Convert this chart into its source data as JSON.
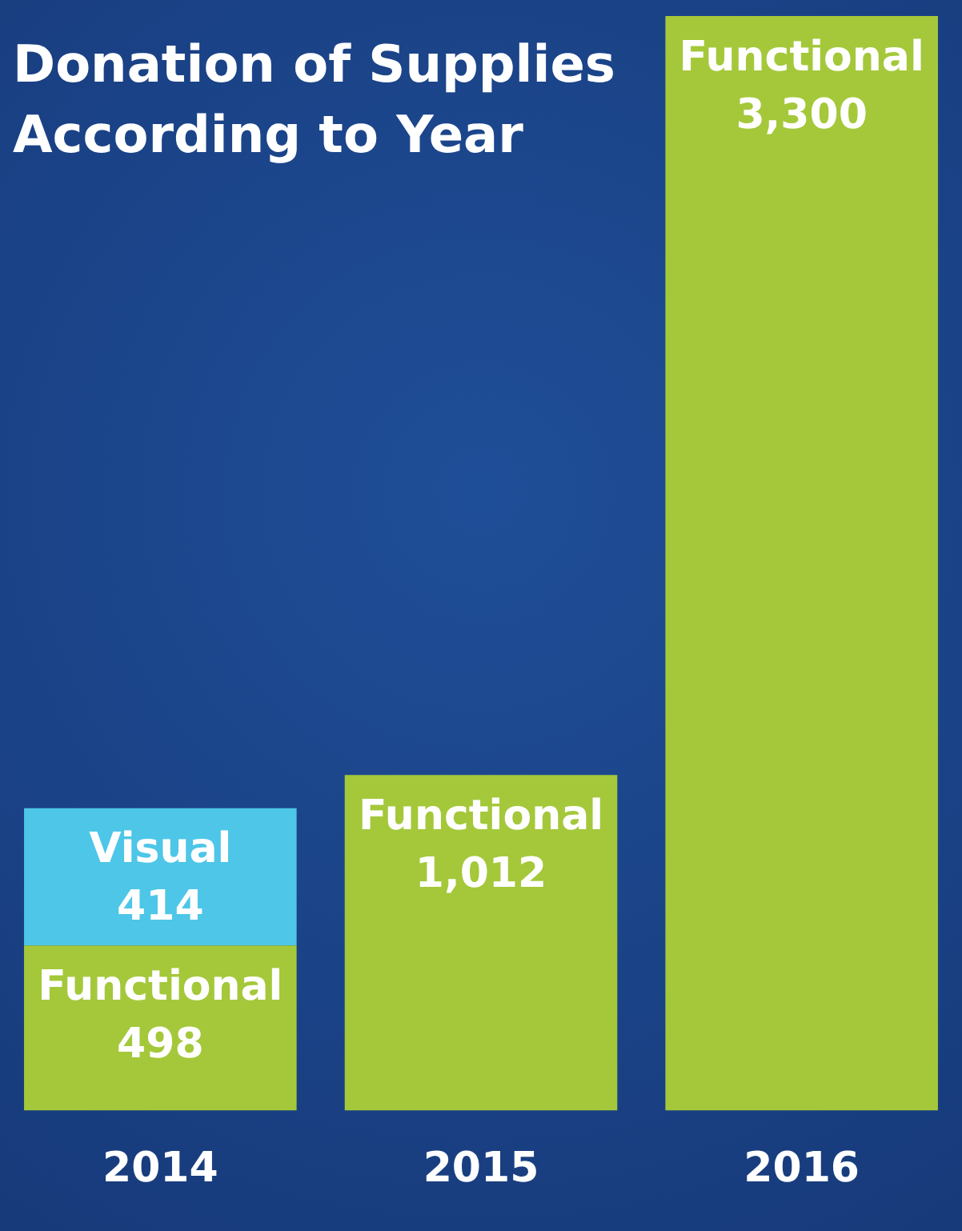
{
  "chart_data": {
    "type": "bar",
    "title": "Donation of Supplies\nAccording to Year",
    "categories": [
      "2014",
      "2015",
      "2016"
    ],
    "stacked": true,
    "legend": false,
    "grid": false,
    "tick_labels": "x",
    "series": [
      {
        "name": "Functional",
        "color": "#a4c83a",
        "values": [
          498,
          1012,
          3300
        ],
        "value_labels": [
          "498",
          "1,012",
          "3,300"
        ]
      },
      {
        "name": "Visual",
        "color": "#4dc6e8",
        "values": [
          414,
          null,
          null
        ],
        "value_labels": [
          "414",
          null,
          null
        ]
      }
    ]
  }
}
